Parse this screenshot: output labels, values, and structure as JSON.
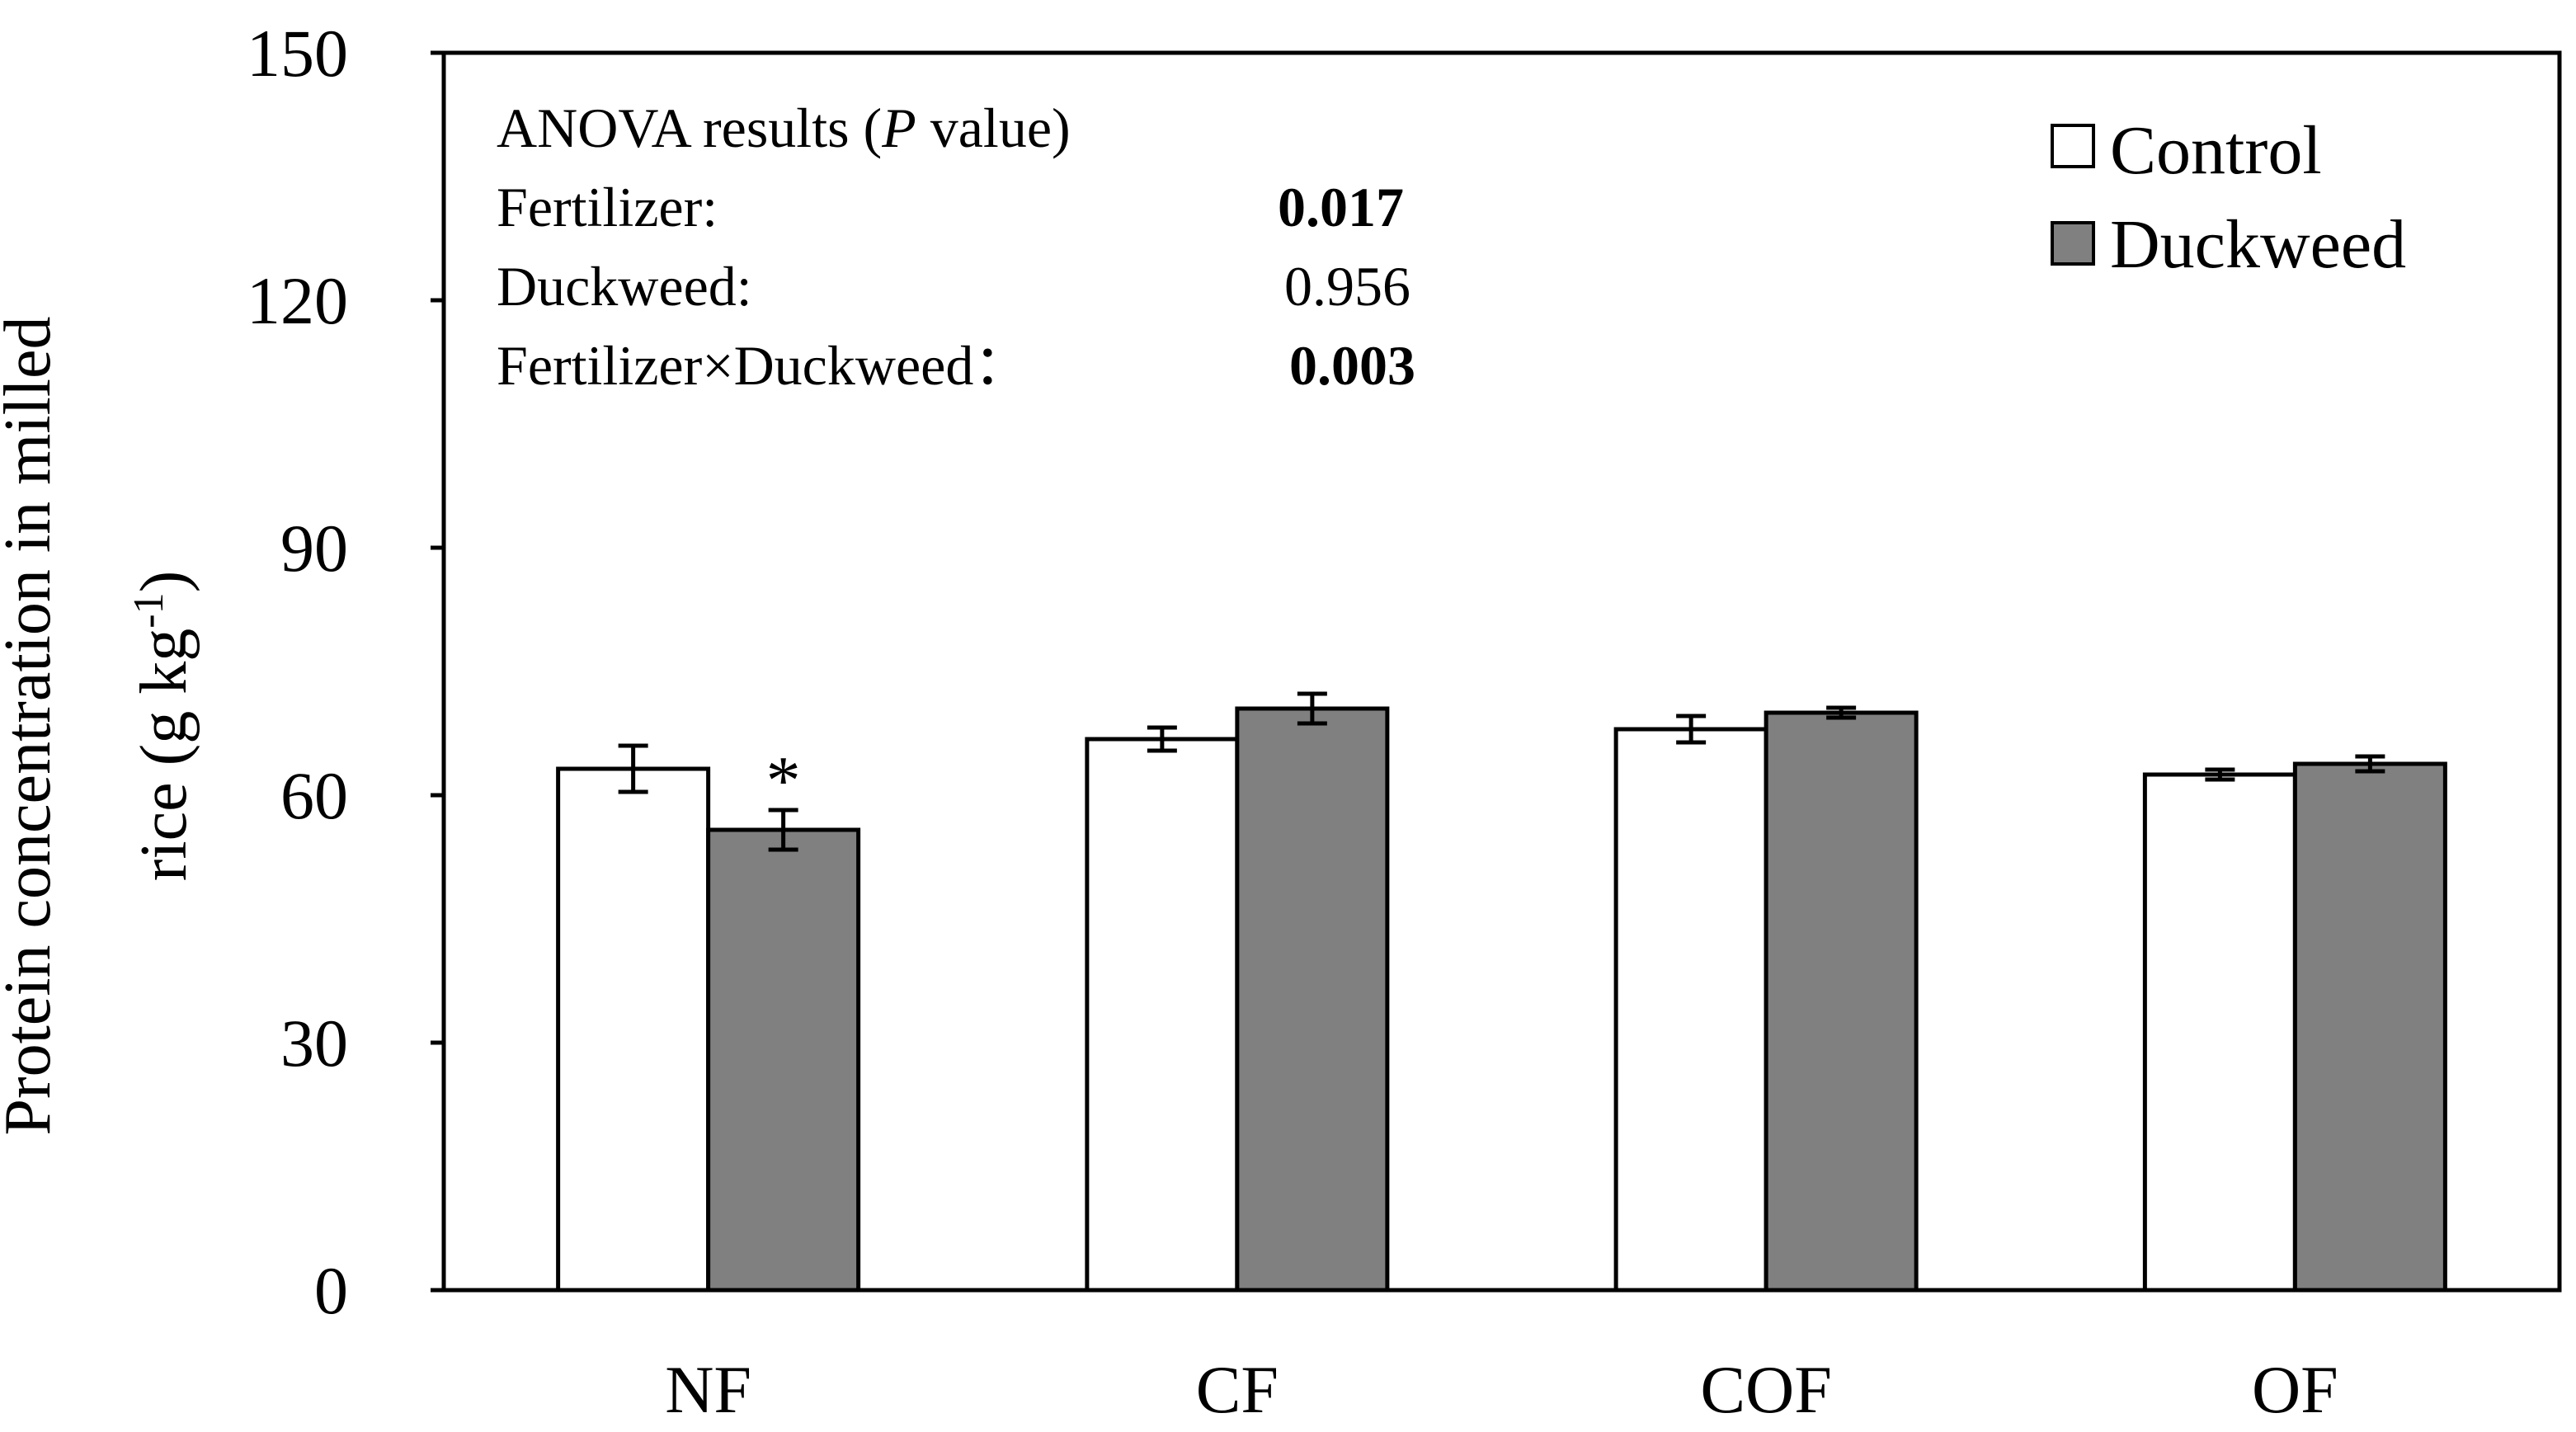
{
  "chart_data": {
    "type": "bar",
    "title": "",
    "xlabel": "",
    "ylabel": "Protein concentration in milled rice (g kg-1)",
    "ylabel_parts": {
      "line1": "Protein concentration in milled",
      "line2_prefix": "rice (g kg",
      "line2_sup": "-1",
      "line2_suffix": ")"
    },
    "ylim": [
      0,
      150
    ],
    "yticks": [
      0,
      30,
      60,
      90,
      120,
      150
    ],
    "categories": [
      "NF",
      "CF",
      "COF",
      "OF"
    ],
    "series": [
      {
        "name": "Control",
        "color": "#FFFFFF",
        "values": [
          63.2,
          66.8,
          68.0,
          62.5
        ],
        "errors": [
          2.8,
          1.4,
          1.6,
          0.6
        ]
      },
      {
        "name": "Duckweed",
        "color": "#808080",
        "values": [
          55.8,
          70.5,
          70.0,
          63.8
        ],
        "errors": [
          2.4,
          1.8,
          0.6,
          0.9
        ]
      }
    ],
    "significance": [
      {
        "category": "NF",
        "series": "Duckweed",
        "mark": "*"
      }
    ],
    "legend_position": "top-right",
    "annotation": {
      "heading_prefix": "ANOVA results (",
      "heading_italic": "P",
      "heading_suffix": " value)",
      "rows": [
        {
          "label": "Fertilizer:",
          "value": "0.017",
          "bold": true
        },
        {
          "label": "Duckweed:",
          "value": "0.956",
          "bold": false
        },
        {
          "label": "Fertilizer×Duckweed：",
          "value": "0.003",
          "bold": true
        }
      ]
    }
  }
}
